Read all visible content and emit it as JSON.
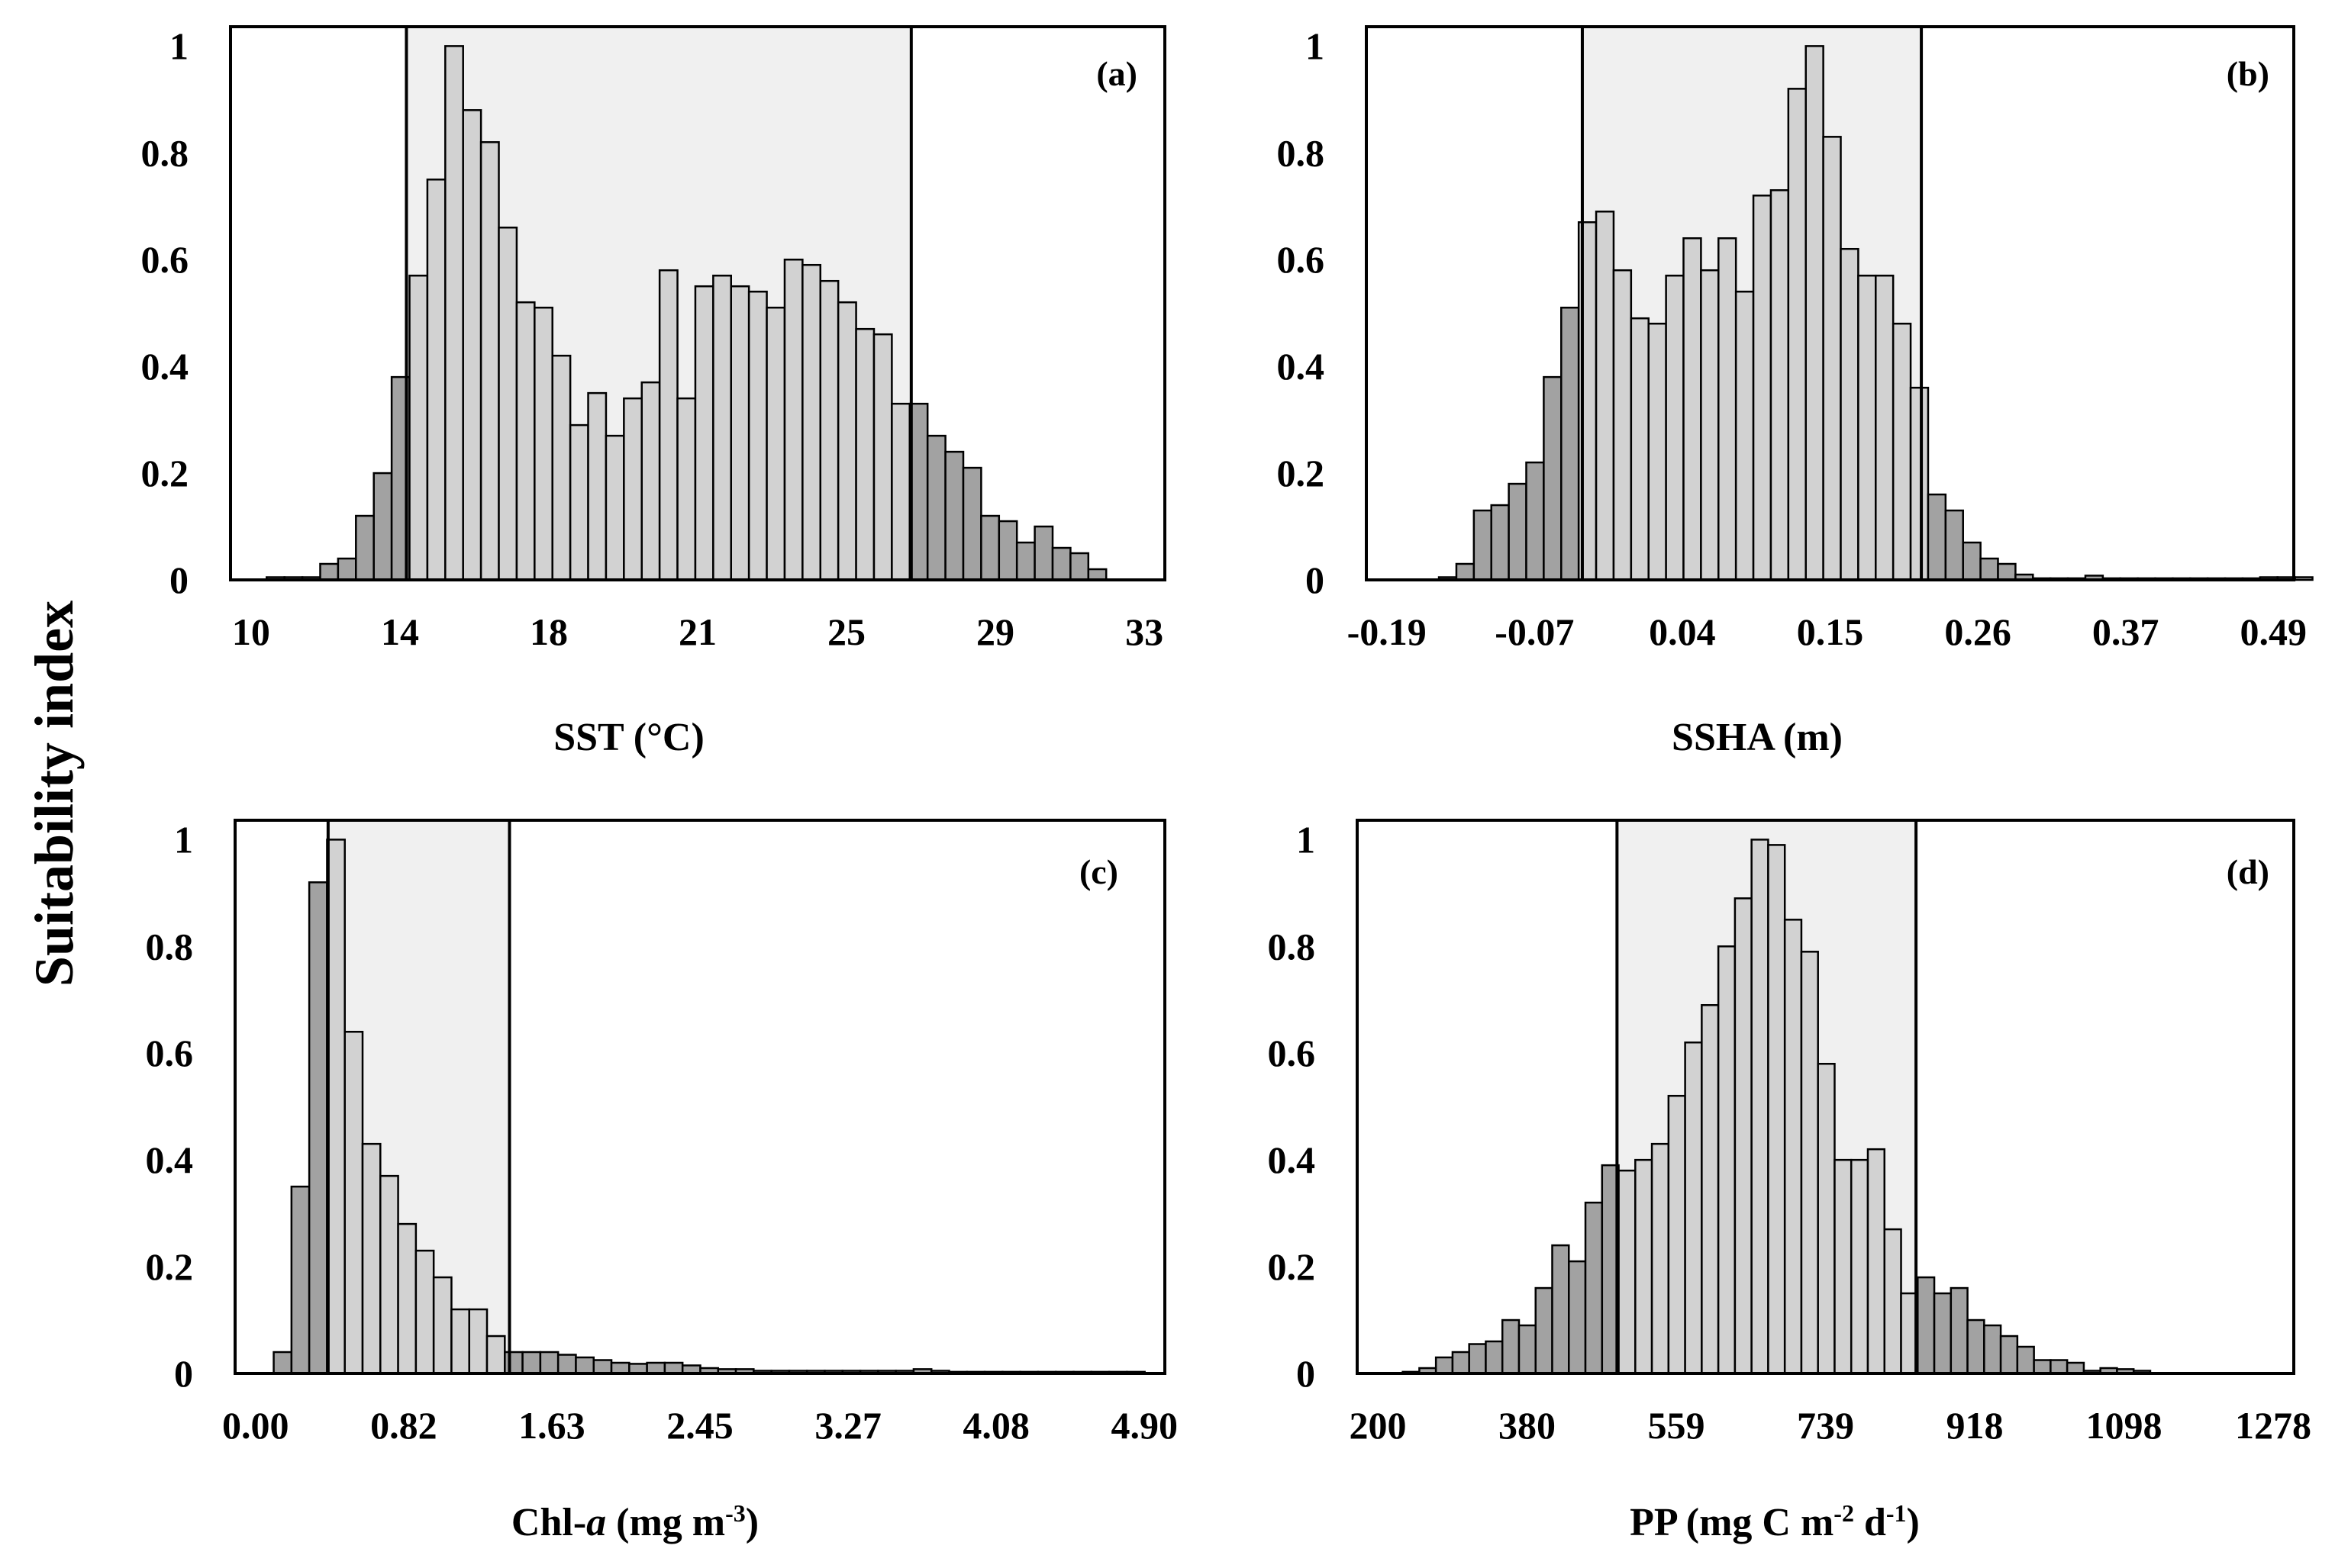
{
  "y_label": "Suitability index",
  "chart_data": [
    {
      "type": "bar",
      "panel": "(a)",
      "xlabel": "SST (°C)",
      "ylabel": "Suitability index",
      "ylim": [
        0,
        1
      ],
      "yticks": [
        "0",
        "0.2",
        "0.4",
        "0.6",
        "0.8",
        "1"
      ],
      "xticks": [
        "10",
        "14",
        "18",
        "21",
        "25",
        "29",
        "33"
      ],
      "xlim": [
        10,
        33
      ],
      "bin_start": 10.4,
      "bin_width": 0.46,
      "highlight_range": [
        14,
        27
      ],
      "values": [
        0.005,
        0.005,
        0.005,
        0.03,
        0.04,
        0.12,
        0.2,
        0.38,
        0.57,
        0.75,
        1.0,
        0.88,
        0.82,
        0.66,
        0.52,
        0.51,
        0.42,
        0.29,
        0.35,
        0.27,
        0.34,
        0.37,
        0.58,
        0.34,
        0.55,
        0.57,
        0.55,
        0.54,
        0.51,
        0.6,
        0.59,
        0.56,
        0.52,
        0.47,
        0.46,
        0.33,
        0.33,
        0.27,
        0.24,
        0.21,
        0.12,
        0.11,
        0.07,
        0.1,
        0.06,
        0.05,
        0.02
      ]
    },
    {
      "type": "bar",
      "panel": "(b)",
      "xlabel": "SSHA (m)",
      "ylabel": "Suitability index",
      "ylim": [
        0,
        1
      ],
      "yticks": [
        "0",
        "0.2",
        "0.4",
        "0.6",
        "0.8",
        "1"
      ],
      "xticks": [
        "-0.19",
        "-0.07",
        "0.04",
        "0.15",
        "0.26",
        "0.37",
        "0.49"
      ],
      "xlim": [
        -0.19,
        0.49
      ],
      "bin_start": -0.15,
      "bin_width": 0.0134,
      "highlight_range": [
        -0.04,
        0.22
      ],
      "values": [
        0.005,
        0.03,
        0.13,
        0.14,
        0.18,
        0.22,
        0.38,
        0.51,
        0.67,
        0.69,
        0.58,
        0.49,
        0.48,
        0.57,
        0.64,
        0.58,
        0.64,
        0.54,
        0.72,
        0.73,
        0.92,
        1.0,
        0.83,
        0.62,
        0.57,
        0.57,
        0.48,
        0.36,
        0.16,
        0.13,
        0.07,
        0.04,
        0.03,
        0.01,
        0.003,
        0.003,
        0.003,
        0.008,
        0.003,
        0.003,
        0.003,
        0.003,
        0.003,
        0.003,
        0.003,
        0.003,
        0.003,
        0.005,
        0.005,
        0.005
      ]
    },
    {
      "type": "bar",
      "panel": "(c)",
      "xlabel_main": "Chl-",
      "xlabel_italic": "a",
      "xlabel_units": " (mg m",
      "xlabel_exp": "-3",
      "xlabel_close": ")",
      "ylabel": "Suitability index",
      "ylim": [
        0,
        1
      ],
      "yticks": [
        "0",
        "0.2",
        "0.4",
        "0.6",
        "0.8",
        "1"
      ],
      "xticks": [
        "0.00",
        "0.82",
        "1.63",
        "2.45",
        "3.27",
        "4.08",
        "4.90"
      ],
      "xlim": [
        0,
        4.9
      ],
      "bin_start": 0.1,
      "bin_width": 0.098,
      "highlight_range": [
        0.4,
        1.4
      ],
      "values": [
        0.04,
        0.35,
        0.92,
        1.0,
        0.64,
        0.43,
        0.37,
        0.28,
        0.23,
        0.18,
        0.12,
        0.12,
        0.07,
        0.04,
        0.04,
        0.04,
        0.035,
        0.03,
        0.025,
        0.02,
        0.018,
        0.02,
        0.02,
        0.015,
        0.01,
        0.008,
        0.008,
        0.005,
        0.005,
        0.005,
        0.005,
        0.005,
        0.005,
        0.005,
        0.005,
        0.005,
        0.008,
        0.005,
        0.003,
        0.003,
        0.003,
        0.003,
        0.003,
        0.003,
        0.003,
        0.003,
        0.003,
        0.003,
        0.003
      ]
    },
    {
      "type": "bar",
      "panel": "(d)",
      "xlabel_main": "PP (mg C m",
      "xlabel_exp1": "-2",
      "xlabel_mid": " d",
      "xlabel_exp2": "-1",
      "xlabel_close": ")",
      "ylabel": "Suitability index",
      "ylim": [
        0,
        1
      ],
      "yticks": [
        "0",
        "0.2",
        "0.4",
        "0.6",
        "0.8",
        "1"
      ],
      "xticks": [
        "200",
        "380",
        "559",
        "739",
        "918",
        "1098",
        "1278"
      ],
      "xlim": [
        200,
        1278
      ],
      "bin_start": 230,
      "bin_width": 20,
      "highlight_range": [
        488,
        848
      ],
      "values": [
        0.003,
        0.01,
        0.03,
        0.04,
        0.055,
        0.06,
        0.1,
        0.09,
        0.16,
        0.24,
        0.21,
        0.32,
        0.39,
        0.38,
        0.4,
        0.43,
        0.52,
        0.62,
        0.69,
        0.8,
        0.89,
        1.0,
        0.99,
        0.85,
        0.79,
        0.58,
        0.4,
        0.4,
        0.42,
        0.27,
        0.15,
        0.18,
        0.15,
        0.16,
        0.1,
        0.09,
        0.07,
        0.05,
        0.025,
        0.025,
        0.02,
        0.005,
        0.01,
        0.008,
        0.005
      ]
    }
  ]
}
